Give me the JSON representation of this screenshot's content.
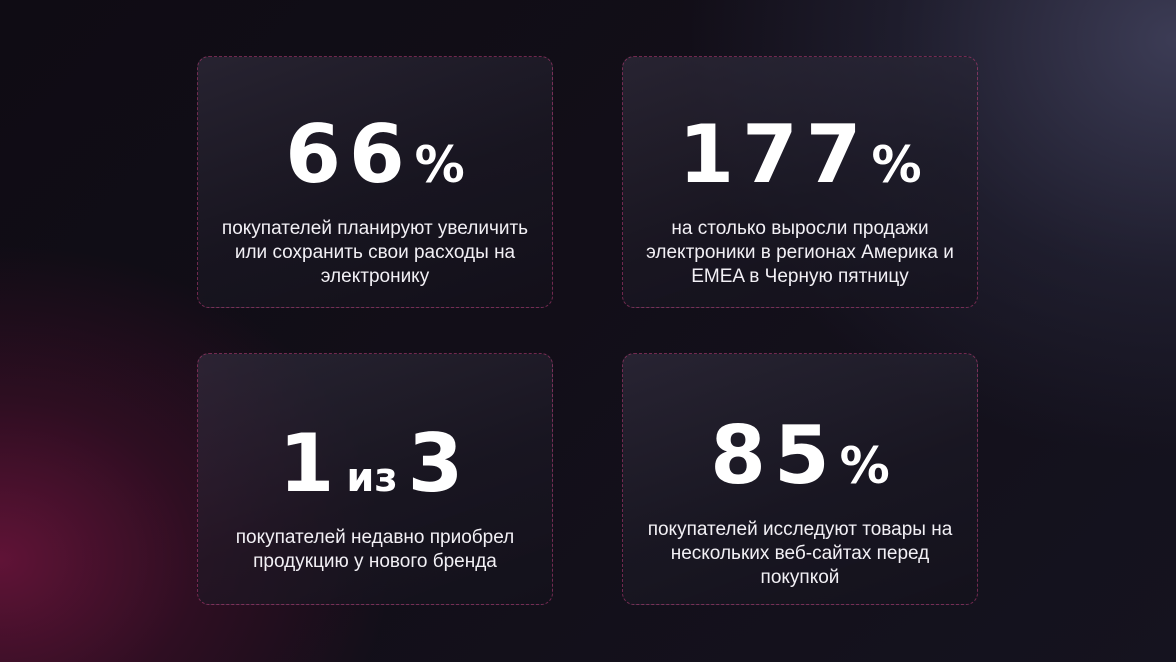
{
  "colors": {
    "border_accent": "#be3c78",
    "text": "#ffffff",
    "background_dark": "#0f0c14",
    "glow_magenta": "#6e143c"
  },
  "stats": [
    {
      "value": "66",
      "unit": "%",
      "description": "покупателей планируют увеличить или сохранить свои расходы на электронику"
    },
    {
      "value": "177",
      "unit": "%",
      "description": "на столько выросли продажи электроники в регионах Америка и EMEA в Черную пятницу"
    },
    {
      "value_left": "1",
      "connector": "из",
      "value_right": "3",
      "description": "покупателей недавно приобрел продукцию у нового бренда"
    },
    {
      "value": "85",
      "unit": "%",
      "description": "покупателей исследуют товары на нескольких веб-сайтах перед покупкой"
    }
  ]
}
